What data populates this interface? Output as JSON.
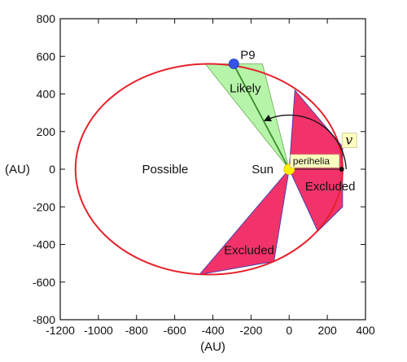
{
  "chart_data": {
    "type": "diagram",
    "xlabel": "(AU)",
    "ylabel": "(AU)",
    "xlim": [
      -1200,
      400
    ],
    "ylim": [
      -800,
      800
    ],
    "xticks": [
      -1200,
      -1000,
      -800,
      -600,
      -400,
      -200,
      0,
      200,
      400
    ],
    "yticks": [
      -800,
      -600,
      -400,
      -200,
      0,
      200,
      400,
      600,
      800
    ],
    "orbit": {
      "center_x": -420,
      "center_y": 0,
      "semi_major": 700,
      "semi_minor": 560,
      "color": "#e8202a"
    },
    "likely_wedge": {
      "points": [
        [
          0,
          0
        ],
        [
          -440,
          560
        ],
        [
          -140,
          560
        ]
      ],
      "color": "#b6f5a9"
    },
    "likely_center_line": {
      "points": [
        [
          0,
          0
        ],
        [
          -290,
          555
        ]
      ],
      "color": "#3a8a2a"
    },
    "excluded_wedges": [
      {
        "points": [
          [
            0,
            0
          ],
          [
            30,
            420
          ],
          [
            280,
            120
          ],
          [
            280,
            -200
          ],
          [
            150,
            -330
          ]
        ],
        "color": "#f2336a"
      },
      {
        "points": [
          [
            0,
            0
          ],
          [
            -470,
            -560
          ],
          [
            -80,
            -490
          ]
        ],
        "color": "#f2336a"
      }
    ],
    "wedge_edge_color": "#3a3ab0",
    "markers": {
      "planet": {
        "x": -290,
        "y": 560,
        "label": "P9",
        "color": "#3355ee"
      },
      "sun": {
        "x": 0,
        "y": 0,
        "label": "Sun",
        "color": "#ffee00"
      },
      "perihelion_point": {
        "x": 275,
        "y": 0,
        "label": "perihelia"
      }
    },
    "angle_label": "v",
    "region_labels": [
      {
        "text": "Possible",
        "x": -650,
        "y": 0
      },
      {
        "text": "Likely",
        "x": -230,
        "y": 430
      },
      {
        "text": "Excluded",
        "x": 215,
        "y": -90
      },
      {
        "text": "Excluded",
        "x": -210,
        "y": -430
      }
    ]
  }
}
